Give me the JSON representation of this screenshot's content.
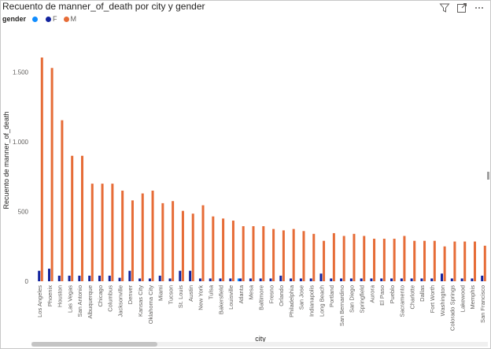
{
  "header": {
    "title": "Recuento de manner_of_death por city y gender",
    "icons": [
      "filter-icon",
      "focus-mode-icon",
      "more-options-icon"
    ]
  },
  "legend": {
    "title": "gender",
    "items": [
      {
        "label": "",
        "color": "#118DFF"
      },
      {
        "label": "F",
        "color": "#12239E"
      },
      {
        "label": "M",
        "color": "#E66C37"
      }
    ]
  },
  "chart_data": {
    "type": "bar",
    "title": "Recuento de manner_of_death por city y gender",
    "xlabel": "city",
    "ylabel": "Recuento de manner_of_death",
    "ylim": [
      0,
      1650
    ],
    "yticks": [
      0,
      500,
      1000,
      1500
    ],
    "ytick_labels": [
      "0",
      "500",
      "1.000",
      "1.500"
    ],
    "legend_position": "top-left",
    "grid": false,
    "categories": [
      "Los Angeles",
      "Phoenix",
      "Houston",
      "Las Vegas",
      "San Antonio",
      "Albuquerque",
      "Chicago",
      "Columbus",
      "Jacksonville",
      "Denver",
      "Kansas City",
      "Oklahoma City",
      "Miami",
      "Tucson",
      "St. Louis",
      "Austin",
      "New York",
      "Tulsa",
      "Bakersfield",
      "Louisville",
      "Atlanta",
      "Mesa",
      "Baltimore",
      "Fresno",
      "Orlando",
      "Philadelphia",
      "San Jose",
      "Indianapolis",
      "Long Beach",
      "Portland",
      "San Bernardino",
      "San Diego",
      "Springfield",
      "Aurora",
      "El Paso",
      "Pueblo",
      "Sacramento",
      "Charlotte",
      "Dallas",
      "Fort Worth",
      "Washington",
      "Colorado Springs",
      "Lakewood",
      "Memphis",
      "San Francisco"
    ],
    "series": [
      {
        "name": "",
        "values": [
          0,
          0,
          0,
          0,
          0,
          0,
          0,
          0,
          0,
          0,
          0,
          0,
          0,
          0,
          0,
          0,
          0,
          0,
          0,
          0,
          20,
          0,
          0,
          0,
          0,
          0,
          0,
          0,
          0,
          0,
          0,
          0,
          0,
          0,
          0,
          0,
          0,
          0,
          0,
          0,
          0,
          0,
          0,
          0,
          0
        ]
      },
      {
        "name": "F",
        "values": [
          75,
          90,
          40,
          40,
          40,
          40,
          40,
          40,
          25,
          75,
          20,
          20,
          40,
          20,
          75,
          75,
          20,
          20,
          20,
          20,
          20,
          20,
          20,
          20,
          40,
          20,
          20,
          20,
          55,
          20,
          20,
          20,
          20,
          20,
          20,
          20,
          20,
          20,
          20,
          20,
          55,
          20,
          20,
          20,
          40
        ]
      },
      {
        "name": "M",
        "values": [
          1605,
          1530,
          1155,
          900,
          900,
          700,
          700,
          700,
          650,
          580,
          630,
          650,
          560,
          575,
          505,
          485,
          545,
          465,
          450,
          435,
          395,
          395,
          395,
          375,
          365,
          375,
          360,
          340,
          290,
          345,
          325,
          340,
          325,
          305,
          305,
          305,
          325,
          290,
          290,
          290,
          250,
          285,
          285,
          285,
          255
        ]
      }
    ]
  }
}
